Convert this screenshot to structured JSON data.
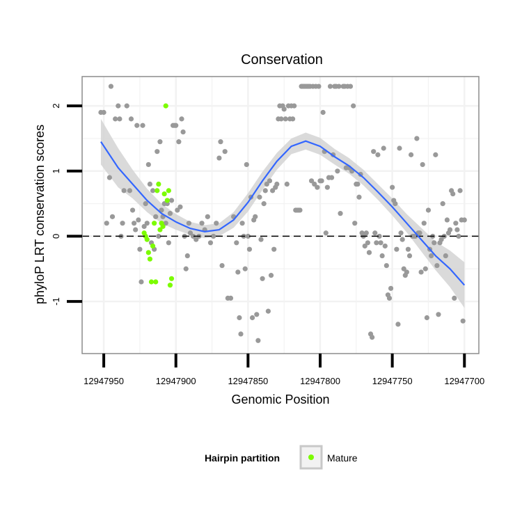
{
  "chart_data": {
    "type": "scatter",
    "title": "Conservation",
    "xlabel": "Genomic Position",
    "ylabel": "phyloP LRT conservation scores",
    "x_reversed": true,
    "xlim": [
      12947965,
      12947690
    ],
    "ylim": [
      -1.8,
      2.45
    ],
    "x_ticks": [
      12947950,
      12947900,
      12947850,
      12947800,
      12947750,
      12947700
    ],
    "x_tick_labels": [
      "12947950",
      "12947900",
      "12947850",
      "12947800",
      "12947750",
      "12947700"
    ],
    "y_ticks": [
      2,
      1,
      0,
      -1
    ],
    "y_tick_labels": [
      "2",
      "1",
      "0",
      "-1"
    ],
    "grid": true,
    "reference_line": {
      "y": 0,
      "style": "dashed"
    },
    "legend": {
      "title": "Hairpin partition",
      "position": "bottom",
      "entries": [
        "Mature"
      ]
    },
    "colors": {
      "other": "#999999",
      "mature": "#7cfc00",
      "smooth": "#3366ff",
      "ribbon": "#d4d4d4",
      "panel_border": "#8c8c8c",
      "grid": "#f2f2f2"
    },
    "series": [
      {
        "name": "",
        "color": "#999999",
        "points": [
          [
            12947952,
            1.9
          ],
          [
            12947950,
            1.9
          ],
          [
            12947948,
            0.2
          ],
          [
            12947946,
            0.9
          ],
          [
            12947945,
            2.3
          ],
          [
            12947944,
            0.3
          ],
          [
            12947942,
            1.8
          ],
          [
            12947940,
            2.0
          ],
          [
            12947939,
            1.8
          ],
          [
            12947938,
            0.0
          ],
          [
            12947937,
            0.2
          ],
          [
            12947936,
            0.7
          ],
          [
            12947934,
            2.0
          ],
          [
            12947932,
            0.7
          ],
          [
            12947931,
            1.8
          ],
          [
            12947930,
            0.4
          ],
          [
            12947929,
            0.2
          ],
          [
            12947928,
            0.1
          ],
          [
            12947927,
            1.7
          ],
          [
            12947926,
            0.25
          ],
          [
            12947925,
            -0.2
          ],
          [
            12947924,
            -0.7
          ],
          [
            12947923,
            1.7
          ],
          [
            12947922,
            0.15
          ],
          [
            12947921,
            0.5
          ],
          [
            12947920,
            0.2
          ],
          [
            12947919,
            1.1
          ],
          [
            12947918,
            0.8
          ],
          [
            12947917,
            -0.1
          ],
          [
            12947916,
            0.7
          ],
          [
            12947915,
            -0.2
          ],
          [
            12947914,
            0.3
          ],
          [
            12947913,
            1.3
          ],
          [
            12947912,
            0.0
          ],
          [
            12947911,
            1.45
          ],
          [
            12947910,
            0.4
          ],
          [
            12947909,
            0.3
          ],
          [
            12947908,
            0.5
          ],
          [
            12947907,
            0.2
          ],
          [
            12947906,
            0.5
          ],
          [
            12947905,
            -0.1
          ],
          [
            12947904,
            0.35
          ],
          [
            12947903,
            0.55
          ],
          [
            12947902,
            1.7
          ],
          [
            12947901,
            1.7
          ],
          [
            12947900,
            1.7
          ],
          [
            12947899,
            0.4
          ],
          [
            12947898,
            1.45
          ],
          [
            12947897,
            0.45
          ],
          [
            12947896,
            1.8
          ],
          [
            12947895,
            1.6
          ],
          [
            12947894,
            0.0
          ],
          [
            12947893,
            -0.5
          ],
          [
            12947892,
            -0.3
          ],
          [
            12947891,
            0.2
          ],
          [
            12947890,
            0.05
          ],
          [
            12947888,
            0.0
          ],
          [
            12947886,
            -0.05
          ],
          [
            12947884,
            0.0
          ],
          [
            12947882,
            0.2
          ],
          [
            12947880,
            0.1
          ],
          [
            12947878,
            0.3
          ],
          [
            12947876,
            -0.1
          ],
          [
            12947874,
            0.0
          ],
          [
            12947872,
            0.2
          ],
          [
            12947870,
            1.2
          ],
          [
            12947869,
            1.45
          ],
          [
            12947868,
            -0.45
          ],
          [
            12947866,
            1.3
          ],
          [
            12947864,
            -0.95
          ],
          [
            12947862,
            -0.95
          ],
          [
            12947860,
            0.3
          ],
          [
            12947858,
            -0.1
          ],
          [
            12947857,
            -0.55
          ],
          [
            12947856,
            -1.25
          ],
          [
            12947855,
            -1.5
          ],
          [
            12947854,
            0.2
          ],
          [
            12947853,
            0.0
          ],
          [
            12947852,
            -0.5
          ],
          [
            12947851,
            1.1
          ],
          [
            12947850,
            0.0
          ],
          [
            12947849,
            -0.2
          ],
          [
            12947848,
            0.6
          ],
          [
            12947847,
            -1.25
          ],
          [
            12947846,
            0.25
          ],
          [
            12947845,
            0.3
          ],
          [
            12947844,
            -1.2
          ],
          [
            12947843,
            -1.6
          ],
          [
            12947842,
            0.6
          ],
          [
            12947841,
            -0.05
          ],
          [
            12947840,
            -0.65
          ],
          [
            12947839,
            0.5
          ],
          [
            12947838,
            0.7
          ],
          [
            12947837,
            0.8
          ],
          [
            12947836,
            -1.15
          ],
          [
            12947835,
            0.85
          ],
          [
            12947834,
            -0.6
          ],
          [
            12947833,
            0.7
          ],
          [
            12947832,
            -0.2
          ],
          [
            12947831,
            0.75
          ],
          [
            12947830,
            0.8
          ],
          [
            12947829,
            1.8
          ],
          [
            12947828,
            2.0
          ],
          [
            12947827,
            1.8
          ],
          [
            12947826,
            2.0
          ],
          [
            12947825,
            1.95
          ],
          [
            12947824,
            1.8
          ],
          [
            12947823,
            0.8
          ],
          [
            12947822,
            2.0
          ],
          [
            12947821,
            1.8
          ],
          [
            12947820,
            2.0
          ],
          [
            12947819,
            1.8
          ],
          [
            12947818,
            2.0
          ],
          [
            12947817,
            0.4
          ],
          [
            12947816,
            0.4
          ],
          [
            12947815,
            0.4
          ],
          [
            12947814,
            0.4
          ],
          [
            12947813,
            2.3
          ],
          [
            12947812,
            2.3
          ],
          [
            12947811,
            2.3
          ],
          [
            12947810,
            2.3
          ],
          [
            12947809,
            2.3
          ],
          [
            12947808,
            2.3
          ],
          [
            12947807,
            2.3
          ],
          [
            12947806,
            0.85
          ],
          [
            12947805,
            2.3
          ],
          [
            12947804,
            0.8
          ],
          [
            12947803,
            2.3
          ],
          [
            12947802,
            0.75
          ],
          [
            12947801,
            2.3
          ],
          [
            12947800,
            0.85
          ],
          [
            12947799,
            0.85
          ],
          [
            12947798,
            1.9
          ],
          [
            12947797,
            1.3
          ],
          [
            12947796,
            0.05
          ],
          [
            12947795,
            0.75
          ],
          [
            12947794,
            0.9
          ],
          [
            12947793,
            2.3
          ],
          [
            12947792,
            0.9
          ],
          [
            12947791,
            1.25
          ],
          [
            12947790,
            2.3
          ],
          [
            12947789,
            2.3
          ],
          [
            12947788,
            1.0
          ],
          [
            12947787,
            2.3
          ],
          [
            12947786,
            0.35
          ],
          [
            12947784,
            2.3
          ],
          [
            12947783,
            2.3
          ],
          [
            12947782,
            1.05
          ],
          [
            12947781,
            2.3
          ],
          [
            12947780,
            1.05
          ],
          [
            12947779,
            2.3
          ],
          [
            12947778,
            1.0
          ],
          [
            12947777,
            2.0
          ],
          [
            12947776,
            0.2
          ],
          [
            12947775,
            0.8
          ],
          [
            12947774,
            0.8
          ],
          [
            12947773,
            0.6
          ],
          [
            12947772,
            0.95
          ],
          [
            12947771,
            0.05
          ],
          [
            12947770,
            0.0
          ],
          [
            12947769,
            -0.15
          ],
          [
            12947768,
            0.05
          ],
          [
            12947767,
            -0.1
          ],
          [
            12947766,
            -0.25
          ],
          [
            12947765,
            -1.5
          ],
          [
            12947764,
            -1.55
          ],
          [
            12947763,
            1.3
          ],
          [
            12947762,
            0.05
          ],
          [
            12947761,
            -0.1
          ],
          [
            12947760,
            1.25
          ],
          [
            12947759,
            0.0
          ],
          [
            12947758,
            -0.1
          ],
          [
            12947757,
            -0.3
          ],
          [
            12947756,
            1.35
          ],
          [
            12947755,
            -0.15
          ],
          [
            12947754,
            -0.45
          ],
          [
            12947753,
            -0.9
          ],
          [
            12947752,
            -0.95
          ],
          [
            12947751,
            -0.8
          ],
          [
            12947750,
            0.75
          ],
          [
            12947749,
            0.55
          ],
          [
            12947748,
            0.5
          ],
          [
            12947747,
            -0.2
          ],
          [
            12947746,
            -1.35
          ],
          [
            12947745,
            1.35
          ],
          [
            12947744,
            0.05
          ],
          [
            12947743,
            -0.05
          ],
          [
            12947742,
            -0.5
          ],
          [
            12947741,
            -0.6
          ],
          [
            12947740,
            -0.55
          ],
          [
            12947739,
            -0.2
          ],
          [
            12947738,
            -0.3
          ],
          [
            12947737,
            1.25
          ],
          [
            12947736,
            0.0
          ],
          [
            12947735,
            0.0
          ],
          [
            12947734,
            0.0
          ],
          [
            12947733,
            1.5
          ],
          [
            12947732,
            0.05
          ],
          [
            12947731,
            0.05
          ],
          [
            12947730,
            -0.55
          ],
          [
            12947729,
            1.1
          ],
          [
            12947728,
            0.2
          ],
          [
            12947727,
            -0.5
          ],
          [
            12947726,
            -1.25
          ],
          [
            12947725,
            0.4
          ],
          [
            12947724,
            -0.2
          ],
          [
            12947723,
            -0.3
          ],
          [
            12947722,
            0.0
          ],
          [
            12947721,
            -0.1
          ],
          [
            12947720,
            1.25
          ],
          [
            12947719,
            -0.45
          ],
          [
            12947718,
            -1.2
          ],
          [
            12947717,
            -0.1
          ],
          [
            12947716,
            -0.05
          ],
          [
            12947715,
            0.5
          ],
          [
            12947714,
            0.0
          ],
          [
            12947713,
            -0.3
          ],
          [
            12947712,
            0.25
          ],
          [
            12947711,
            0.05
          ],
          [
            12947710,
            0.1
          ],
          [
            12947709,
            0.7
          ],
          [
            12947708,
            0.65
          ],
          [
            12947707,
            -0.95
          ],
          [
            12947706,
            0.2
          ],
          [
            12947705,
            0.1
          ],
          [
            12947704,
            0.0
          ],
          [
            12947703,
            0.7
          ],
          [
            12947702,
            0.25
          ],
          [
            12947701,
            -1.3
          ],
          [
            12947700,
            0.25
          ]
        ]
      },
      {
        "name": "Mature",
        "color": "#7cfc00",
        "points": [
          [
            12947922,
            0.05
          ],
          [
            12947921,
            0.0
          ],
          [
            12947920,
            -0.05
          ],
          [
            12947919,
            -0.25
          ],
          [
            12947918,
            -0.35
          ],
          [
            12947917,
            -0.7
          ],
          [
            12947916,
            -0.15
          ],
          [
            12947915,
            0.2
          ],
          [
            12947914,
            -0.7
          ],
          [
            12947913,
            0.7
          ],
          [
            12947912,
            0.8
          ],
          [
            12947911,
            0.1
          ],
          [
            12947910,
            0.2
          ],
          [
            12947909,
            0.15
          ],
          [
            12947908,
            0.65
          ],
          [
            12947907,
            2.0
          ],
          [
            12947906,
            0.55
          ],
          [
            12947905,
            0.7
          ],
          [
            12947904,
            -0.75
          ],
          [
            12947903,
            -0.65
          ]
        ]
      }
    ],
    "smooth": {
      "x": [
        12947952,
        12947940,
        12947930,
        12947920,
        12947910,
        12947900,
        12947890,
        12947880,
        12947870,
        12947860,
        12947850,
        12947840,
        12947830,
        12947820,
        12947810,
        12947800,
        12947790,
        12947780,
        12947770,
        12947760,
        12947750,
        12947740,
        12947730,
        12947720,
        12947710,
        12947700
      ],
      "y": [
        1.45,
        1.05,
        0.8,
        0.55,
        0.35,
        0.22,
        0.12,
        0.07,
        0.1,
        0.25,
        0.52,
        0.85,
        1.15,
        1.38,
        1.46,
        1.38,
        1.22,
        1.08,
        0.9,
        0.68,
        0.45,
        0.2,
        -0.05,
        -0.3,
        -0.5,
        -0.75
      ],
      "se": [
        0.35,
        0.3,
        0.22,
        0.18,
        0.15,
        0.12,
        0.1,
        0.1,
        0.1,
        0.12,
        0.14,
        0.14,
        0.13,
        0.12,
        0.13,
        0.13,
        0.12,
        0.12,
        0.12,
        0.12,
        0.13,
        0.14,
        0.18,
        0.22,
        0.28,
        0.35
      ]
    }
  }
}
